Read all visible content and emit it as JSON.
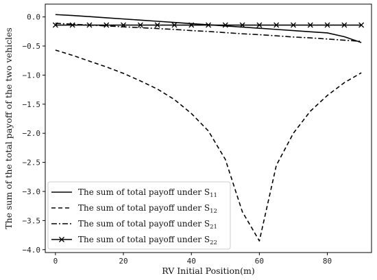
{
  "chart_data": {
    "type": "line",
    "title": "",
    "xlabel": "RV Initial Position(m)",
    "ylabel": "The sum of the total payoff of the two vehicles",
    "xlim": [
      -3,
      93
    ],
    "ylim": [
      -4.05,
      0.22
    ],
    "xticks": [
      0,
      20,
      40,
      60,
      80
    ],
    "xtick_labels": [
      "0",
      "20",
      "40",
      "60",
      "80"
    ],
    "yticks": [
      0.0,
      -0.5,
      -1.0,
      -1.5,
      -2.0,
      -2.5,
      -3.0,
      -3.5,
      -4.0
    ],
    "ytick_labels": [
      "0.0",
      "−0.5",
      "−1.0",
      "−1.5",
      "−2.0",
      "−2.5",
      "−3.0",
      "−3.5",
      "−4.0"
    ],
    "grid": false,
    "legend_position": "lower-left",
    "x": [
      0,
      5,
      10,
      15,
      20,
      25,
      30,
      35,
      40,
      45,
      50,
      55,
      60,
      65,
      70,
      75,
      80,
      85,
      90
    ],
    "series": [
      {
        "name": "The sum of total payoff under S11",
        "label_text": "The sum of total payoff under S",
        "label_sub": "11",
        "style": "solid",
        "marker": "none",
        "color": "#000000",
        "values": [
          0.04,
          0.025,
          0.005,
          -0.015,
          -0.035,
          -0.055,
          -0.075,
          -0.095,
          -0.115,
          -0.135,
          -0.155,
          -0.175,
          -0.195,
          -0.215,
          -0.235,
          -0.255,
          -0.275,
          -0.34,
          -0.44
        ]
      },
      {
        "name": "The sum of total payoff under S12",
        "label_text": "The sum of total payoff under S",
        "label_sub": "12",
        "style": "dashed",
        "marker": "none",
        "color": "#000000",
        "values": [
          -0.57,
          -0.66,
          -0.76,
          -0.86,
          -0.97,
          -1.1,
          -1.24,
          -1.42,
          -1.66,
          -1.96,
          -2.45,
          -3.35,
          -3.85,
          -2.55,
          -2.0,
          -1.62,
          -1.35,
          -1.13,
          -0.96
        ]
      },
      {
        "name": "The sum of total payoff under S21",
        "label_text": "The sum of total payoff under S",
        "label_sub": "21",
        "style": "dashdot",
        "marker": "none",
        "color": "#000000",
        "values": [
          -0.11,
          -0.125,
          -0.14,
          -0.155,
          -0.17,
          -0.185,
          -0.2,
          -0.215,
          -0.235,
          -0.25,
          -0.27,
          -0.29,
          -0.305,
          -0.325,
          -0.345,
          -0.36,
          -0.38,
          -0.4,
          -0.42
        ]
      },
      {
        "name": "The sum of total payoff under S22",
        "label_text": "The sum of total payoff under S",
        "label_sub": "22",
        "style": "solid",
        "marker": "x",
        "color": "#000000",
        "values": [
          -0.14,
          -0.14,
          -0.14,
          -0.14,
          -0.14,
          -0.14,
          -0.14,
          -0.14,
          -0.14,
          -0.14,
          -0.14,
          -0.14,
          -0.14,
          -0.14,
          -0.14,
          -0.14,
          -0.14,
          -0.14,
          -0.14
        ]
      }
    ]
  }
}
